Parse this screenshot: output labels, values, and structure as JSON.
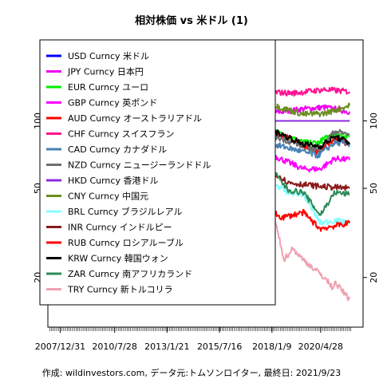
{
  "chart_data": {
    "type": "line",
    "title": "相対株価 vs 米ドル (1)",
    "caption": "作成: wildinvestors.com, データ元:トムソンロイター, 最終日: 2021/9/23",
    "y_scale": "log",
    "ylim": [
      12,
      230
    ],
    "y_ticks": [
      20,
      50,
      100
    ],
    "x_range": [
      "2007-06-01",
      "2022-05-01"
    ],
    "x_ticks": [
      {
        "date": "2007-12-31",
        "label": "2007/12/31"
      },
      {
        "date": "2010-07-28",
        "label": "2010/7/28"
      },
      {
        "date": "2013-01-21",
        "label": "2013/1/21"
      },
      {
        "date": "2015-07-16",
        "label": "2015/7/16"
      },
      {
        "date": "2018-01-09",
        "label": "2018/1/9"
      },
      {
        "date": "2020-04-28",
        "label": "2020/4/28"
      }
    ],
    "legend_position": "top-left",
    "series": [
      {
        "name": "USD Curncy 米ドル",
        "color": "#0000ff",
        "values": [
          [
            2007.6,
            100
          ],
          [
            2021.7,
            100
          ]
        ]
      },
      {
        "name": "JPY Curncy 日本円",
        "color": "#ee00ee",
        "values": [
          [
            2007.6,
            100
          ],
          [
            2008.7,
            112
          ],
          [
            2009.2,
            130
          ],
          [
            2010.5,
            136
          ],
          [
            2011.8,
            150
          ],
          [
            2012.9,
            140
          ],
          [
            2013.5,
            118
          ],
          [
            2015.0,
            100
          ],
          [
            2016.5,
            115
          ],
          [
            2017.5,
            108
          ],
          [
            2018.5,
            110
          ],
          [
            2019.5,
            113
          ],
          [
            2020.5,
            115
          ],
          [
            2021.7,
            110
          ]
        ]
      },
      {
        "name": "EUR Curncy ユーロ",
        "color": "#00ee00",
        "values": [
          [
            2007.6,
            100
          ],
          [
            2008.5,
            113
          ],
          [
            2009.2,
            98
          ],
          [
            2009.9,
            108
          ],
          [
            2010.5,
            92
          ],
          [
            2011.3,
            106
          ],
          [
            2012.5,
            92
          ],
          [
            2014.3,
            101
          ],
          [
            2015.2,
            80
          ],
          [
            2017.0,
            77
          ],
          [
            2018.1,
            90
          ],
          [
            2019.5,
            80
          ],
          [
            2020.2,
            80
          ],
          [
            2021.0,
            88
          ],
          [
            2021.7,
            85
          ]
        ]
      },
      {
        "name": "GBP Curncy 英ポンド",
        "color": "#ff00ff",
        "values": [
          [
            2007.6,
            100
          ],
          [
            2007.9,
            102
          ],
          [
            2008.9,
            75
          ],
          [
            2009.2,
            70
          ],
          [
            2010.5,
            76
          ],
          [
            2011.5,
            80
          ],
          [
            2013.0,
            77
          ],
          [
            2014.5,
            84
          ],
          [
            2015.5,
            76
          ],
          [
            2016.5,
            65
          ],
          [
            2017.5,
            64
          ],
          [
            2018.1,
            70
          ],
          [
            2019.5,
            61
          ],
          [
            2020.3,
            61
          ],
          [
            2021.0,
            68
          ],
          [
            2021.7,
            67
          ]
        ]
      },
      {
        "name": "AUD Curncy オーストラリアドル",
        "color": "#ff0000",
        "values": [
          [
            2007.6,
            100
          ],
          [
            2008.4,
            110
          ],
          [
            2008.9,
            75
          ],
          [
            2009.9,
            107
          ],
          [
            2011.3,
            128
          ],
          [
            2012.5,
            120
          ],
          [
            2013.8,
            106
          ],
          [
            2015.2,
            90
          ],
          [
            2016.0,
            80
          ],
          [
            2017.5,
            90
          ],
          [
            2018.5,
            87
          ],
          [
            2020.2,
            72
          ],
          [
            2021.0,
            84
          ],
          [
            2021.7,
            78
          ]
        ]
      },
      {
        "name": "CHF Curncy スイスフラン",
        "color": "#ff1493",
        "values": [
          [
            2007.6,
            100
          ],
          [
            2008.9,
            110
          ],
          [
            2010.0,
            118
          ],
          [
            2011.6,
            145
          ],
          [
            2012.5,
            130
          ],
          [
            2014.5,
            135
          ],
          [
            2015.1,
            150
          ],
          [
            2016.0,
            132
          ],
          [
            2017.5,
            135
          ],
          [
            2019.0,
            133
          ],
          [
            2020.5,
            138
          ],
          [
            2021.7,
            135
          ]
        ]
      },
      {
        "name": "CAD Curncy カナダドル",
        "color": "#4682b4",
        "values": [
          [
            2007.6,
            100
          ],
          [
            2007.9,
            104
          ],
          [
            2008.9,
            80
          ],
          [
            2010.0,
            95
          ],
          [
            2011.5,
            104
          ],
          [
            2012.5,
            100
          ],
          [
            2014.0,
            90
          ],
          [
            2015.5,
            78
          ],
          [
            2016.0,
            72
          ],
          [
            2017.5,
            80
          ],
          [
            2018.5,
            77
          ],
          [
            2020.2,
            70
          ],
          [
            2021.0,
            80
          ],
          [
            2021.7,
            79
          ]
        ]
      },
      {
        "name": "NZD Curncy ニュージーランドドル",
        "color": "#6e6e6e",
        "values": [
          [
            2007.6,
            100
          ],
          [
            2008.5,
            102
          ],
          [
            2009.2,
            70
          ],
          [
            2010.5,
            88
          ],
          [
            2011.6,
            100
          ],
          [
            2013.0,
            103
          ],
          [
            2014.5,
            107
          ],
          [
            2015.5,
            87
          ],
          [
            2016.5,
            90
          ],
          [
            2017.5,
            88
          ],
          [
            2018.5,
            83
          ],
          [
            2020.2,
            74
          ],
          [
            2021.0,
            90
          ],
          [
            2021.7,
            87
          ]
        ]
      },
      {
        "name": "HKD Curncy 香港ドル",
        "color": "#8a2be2",
        "values": [
          [
            2007.6,
            100
          ],
          [
            2021.7,
            100
          ]
        ]
      },
      {
        "name": "CNY Curncy 中国元",
        "color": "#6b8e23",
        "values": [
          [
            2007.6,
            100
          ],
          [
            2008.5,
            108
          ],
          [
            2010.0,
            110
          ],
          [
            2012.0,
            118
          ],
          [
            2014.0,
            122
          ],
          [
            2015.7,
            115
          ],
          [
            2017.0,
            106
          ],
          [
            2018.0,
            118
          ],
          [
            2019.5,
            107
          ],
          [
            2020.5,
            108
          ],
          [
            2021.7,
            117
          ]
        ]
      },
      {
        "name": "BRL Curncy ブラジルレアル",
        "color": "#87ffff",
        "values": [
          [
            2007.6,
            100
          ],
          [
            2008.5,
            120
          ],
          [
            2008.9,
            78
          ],
          [
            2010.0,
            104
          ],
          [
            2011.5,
            112
          ],
          [
            2012.5,
            93
          ],
          [
            2014.0,
            80
          ],
          [
            2015.0,
            65
          ],
          [
            2015.9,
            48
          ],
          [
            2016.5,
            56
          ],
          [
            2017.5,
            58
          ],
          [
            2018.7,
            48
          ],
          [
            2019.5,
            47
          ],
          [
            2020.3,
            35
          ],
          [
            2021.0,
            36
          ],
          [
            2021.7,
            35
          ]
        ]
      },
      {
        "name": "INR Curncy インドルピー",
        "color": "#8b1a1a",
        "values": [
          [
            2007.6,
            100
          ],
          [
            2008.3,
            96
          ],
          [
            2009.0,
            78
          ],
          [
            2010.5,
            84
          ],
          [
            2011.5,
            84
          ],
          [
            2012.5,
            72
          ],
          [
            2013.7,
            62
          ],
          [
            2015.0,
            62
          ],
          [
            2016.5,
            57
          ],
          [
            2018.0,
            60
          ],
          [
            2018.8,
            53
          ],
          [
            2020.3,
            51
          ],
          [
            2021.7,
            50
          ]
        ]
      },
      {
        "name": "RUB Curncy ロシアルーブル",
        "color": "#ff0000",
        "values": [
          [
            2007.6,
            100
          ],
          [
            2008.5,
            103
          ],
          [
            2009.1,
            73
          ],
          [
            2010.0,
            83
          ],
          [
            2011.5,
            82
          ],
          [
            2013.0,
            80
          ],
          [
            2014.0,
            70
          ],
          [
            2014.5,
            65
          ],
          [
            2015.0,
            43
          ],
          [
            2015.5,
            47
          ],
          [
            2016.0,
            35
          ],
          [
            2016.6,
            40
          ],
          [
            2017.5,
            42
          ],
          [
            2018.5,
            37
          ],
          [
            2019.5,
            39
          ],
          [
            2020.3,
            33
          ],
          [
            2021.0,
            34
          ],
          [
            2021.7,
            35
          ]
        ]
      },
      {
        "name": "KRW Curncy 韓国ウォン",
        "color": "#000000",
        "values": [
          [
            2007.6,
            100
          ],
          [
            2008.5,
            88
          ],
          [
            2009.1,
            68
          ],
          [
            2010.0,
            82
          ],
          [
            2011.5,
            87
          ],
          [
            2012.5,
            86
          ],
          [
            2014.0,
            94
          ],
          [
            2015.5,
            85
          ],
          [
            2016.0,
            80
          ],
          [
            2017.5,
            87
          ],
          [
            2018.0,
            91
          ],
          [
            2019.5,
            79
          ],
          [
            2020.3,
            77
          ],
          [
            2021.0,
            85
          ],
          [
            2021.7,
            80
          ]
        ]
      },
      {
        "name": "ZAR Curncy 南アフリカランド",
        "color": "#2e8b57",
        "values": [
          [
            2007.6,
            100
          ],
          [
            2008.5,
            90
          ],
          [
            2008.9,
            68
          ],
          [
            2010.0,
            95
          ],
          [
            2011.3,
            100
          ],
          [
            2012.5,
            86
          ],
          [
            2013.7,
            72
          ],
          [
            2015.0,
            62
          ],
          [
            2016.0,
            48
          ],
          [
            2016.5,
            52
          ],
          [
            2017.5,
            55
          ],
          [
            2018.1,
            59
          ],
          [
            2018.8,
            49
          ],
          [
            2019.5,
            48
          ],
          [
            2020.3,
            38
          ],
          [
            2021.0,
            48
          ],
          [
            2021.7,
            47
          ]
        ]
      },
      {
        "name": "TRY Curncy 新トルコリラ",
        "color": "#f0a0b0",
        "values": [
          [
            2007.6,
            100
          ],
          [
            2008.4,
            110
          ],
          [
            2009.0,
            73
          ],
          [
            2010.0,
            88
          ],
          [
            2011.5,
            78
          ],
          [
            2013.0,
            76
          ],
          [
            2014.0,
            60
          ],
          [
            2015.0,
            56
          ],
          [
            2016.0,
            50
          ],
          [
            2017.0,
            40
          ],
          [
            2018.1,
            38
          ],
          [
            2018.6,
            24
          ],
          [
            2019.0,
            27
          ],
          [
            2019.5,
            24
          ],
          [
            2020.5,
            20
          ],
          [
            2020.9,
            18
          ],
          [
            2021.0,
            19
          ],
          [
            2021.7,
            16
          ]
        ]
      }
    ]
  }
}
